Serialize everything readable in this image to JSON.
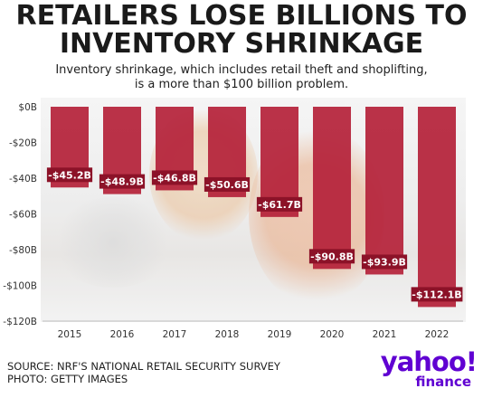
{
  "title_line1": "RETAILERS LOSE BILLIONS TO",
  "title_line2": "INVENTORY SHRINKAGE",
  "subtitle_line1": "Inventory shrinkage, which includes retail theft and shoplifting,",
  "subtitle_line2": "is a more than $100 billion problem.",
  "source_line1": "SOURCE: NRF'S NATIONAL RETAIL SECURITY SURVEY",
  "source_line2": "PHOTO: GETTY IMAGES",
  "logo": {
    "word": "yahoo!",
    "sub": "finance"
  },
  "colors": {
    "bar": "#b5223a",
    "label_bg": "#8c1228",
    "label_text": "#ffffff",
    "brand": "#6001d2"
  },
  "chart_data": {
    "type": "bar",
    "title": "RETAILERS LOSE BILLIONS TO INVENTORY SHRINKAGE",
    "categories": [
      "2015",
      "2016",
      "2017",
      "2018",
      "2019",
      "2020",
      "2021",
      "2022"
    ],
    "values": [
      -45.2,
      -48.9,
      -46.8,
      -50.6,
      -61.7,
      -90.8,
      -93.9,
      -112.1
    ],
    "data_labels": [
      "-$45.2B",
      "-$48.9B",
      "-$46.8B",
      "-$50.6B",
      "-$61.7B",
      "-$90.8B",
      "-$93.9B",
      "-$112.1B"
    ],
    "yticks": [
      0,
      -20,
      -40,
      -60,
      -80,
      -100,
      -120
    ],
    "ytick_labels": [
      "$0B",
      "-$20B",
      "-$40B",
      "-$60B",
      "-$80B",
      "-$100B",
      "-$120B"
    ],
    "ylim": [
      -120,
      0
    ],
    "grid": false
  }
}
